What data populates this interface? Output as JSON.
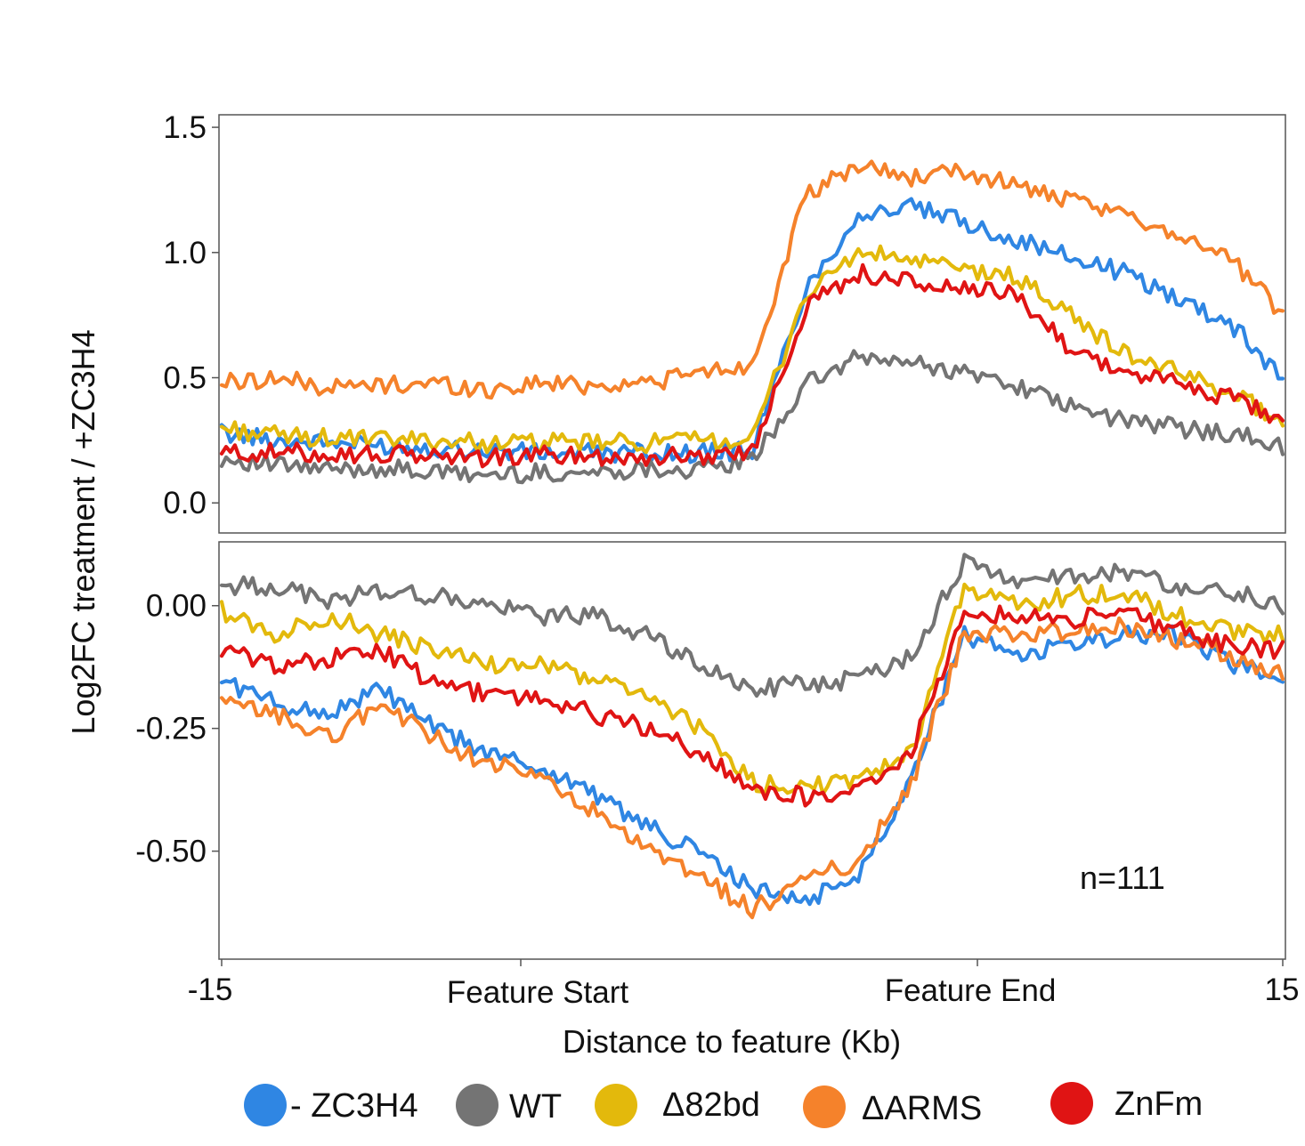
{
  "chart_data": {
    "type": "line",
    "ylabel": "Log2FC treatment / +ZC3H4",
    "xlabel": "Distance to feature (Kb)",
    "x_ticks": [
      "-15",
      "Feature Start",
      "Feature End",
      "15"
    ],
    "annotation": "n=111",
    "legend": [
      {
        "name": "- ZC3H4",
        "color": "#2f86e3"
      },
      {
        "name": "WT",
        "color": "#747474"
      },
      {
        "name": "Δ82bd",
        "color": "#e3b90c"
      },
      {
        "name": "ΔARMS",
        "color": "#f5822b"
      },
      {
        "name": "ZnFm",
        "color": "#e01414"
      }
    ],
    "x": [
      0,
      5,
      10,
      15,
      20,
      25,
      30,
      35,
      40,
      45,
      50,
      55,
      60,
      65,
      70,
      75,
      80,
      85,
      90,
      95,
      100
    ],
    "panels": [
      {
        "position": "top",
        "ylim": [
          -0.12,
          1.55
        ],
        "yticks": [
          {
            "value": 0.0,
            "label": "0.0"
          },
          {
            "value": 0.5,
            "label": "0.5"
          },
          {
            "value": 1.0,
            "label": "1.0"
          },
          {
            "value": 1.5,
            "label": "1.5"
          }
        ],
        "series": [
          {
            "name": "- ZC3H4",
            "color": "#2f86e3",
            "values": [
              0.28,
              0.25,
              0.24,
              0.23,
              0.22,
              0.21,
              0.2,
              0.2,
              0.2,
              0.2,
              0.21,
              0.85,
              1.15,
              1.18,
              1.12,
              1.05,
              0.98,
              0.92,
              0.82,
              0.72,
              0.5
            ]
          },
          {
            "name": "WT",
            "color": "#747474",
            "values": [
              0.18,
              0.15,
              0.13,
              0.14,
              0.12,
              0.11,
              0.12,
              0.12,
              0.14,
              0.13,
              0.17,
              0.47,
              0.58,
              0.56,
              0.52,
              0.47,
              0.38,
              0.33,
              0.3,
              0.28,
              0.22
            ]
          },
          {
            "name": "Δ82bd",
            "color": "#e3b90c",
            "values": [
              0.3,
              0.27,
              0.26,
              0.25,
              0.25,
              0.24,
              0.24,
              0.24,
              0.24,
              0.25,
              0.25,
              0.83,
              1.0,
              0.97,
              0.93,
              0.9,
              0.75,
              0.6,
              0.52,
              0.45,
              0.32
            ]
          },
          {
            "name": "ΔARMS",
            "color": "#f5822b",
            "values": [
              0.48,
              0.5,
              0.46,
              0.47,
              0.48,
              0.45,
              0.48,
              0.47,
              0.48,
              0.52,
              0.55,
              1.22,
              1.35,
              1.3,
              1.32,
              1.27,
              1.2,
              1.15,
              1.08,
              0.98,
              0.75
            ]
          },
          {
            "name": "ZnFm",
            "color": "#e01414",
            "values": [
              0.2,
              0.2,
              0.2,
              0.19,
              0.19,
              0.18,
              0.19,
              0.19,
              0.18,
              0.19,
              0.2,
              0.78,
              0.92,
              0.88,
              0.85,
              0.83,
              0.62,
              0.52,
              0.48,
              0.42,
              0.33
            ]
          }
        ]
      },
      {
        "position": "bottom",
        "ylim": [
          -0.72,
          0.13
        ],
        "yticks": [
          {
            "value": -0.5,
            "label": "-0.50"
          },
          {
            "value": -0.25,
            "label": "-0.25"
          },
          {
            "value": 0.0,
            "label": "0.00"
          }
        ],
        "series": [
          {
            "name": "- ZC3H4",
            "color": "#2f86e3",
            "values": [
              -0.15,
              -0.2,
              -0.22,
              -0.17,
              -0.25,
              -0.3,
              -0.33,
              -0.38,
              -0.45,
              -0.5,
              -0.58,
              -0.6,
              -0.55,
              -0.35,
              -0.06,
              -0.1,
              -0.08,
              -0.06,
              -0.06,
              -0.12,
              -0.14
            ]
          },
          {
            "name": "WT",
            "color": "#747474",
            "values": [
              0.04,
              0.04,
              0.01,
              0.03,
              0.02,
              0.0,
              -0.02,
              -0.02,
              -0.06,
              -0.12,
              -0.17,
              -0.16,
              -0.15,
              -0.1,
              0.09,
              0.05,
              0.06,
              0.07,
              0.04,
              0.03,
              0.0
            ]
          },
          {
            "name": "Δ82bd",
            "color": "#e3b90c",
            "values": [
              -0.01,
              -0.06,
              -0.02,
              -0.06,
              -0.09,
              -0.12,
              -0.12,
              -0.15,
              -0.18,
              -0.25,
              -0.36,
              -0.37,
              -0.36,
              -0.3,
              0.04,
              0.0,
              0.02,
              0.03,
              -0.02,
              -0.05,
              -0.06
            ]
          },
          {
            "name": "ΔARMS",
            "color": "#f5822b",
            "values": [
              -0.2,
              -0.22,
              -0.27,
              -0.2,
              -0.27,
              -0.32,
              -0.35,
              -0.42,
              -0.5,
              -0.55,
              -0.62,
              -0.56,
              -0.52,
              -0.36,
              -0.06,
              -0.06,
              -0.05,
              -0.04,
              -0.07,
              -0.1,
              -0.14
            ]
          },
          {
            "name": "ZnFm",
            "color": "#e01414",
            "values": [
              -0.09,
              -0.12,
              -0.11,
              -0.09,
              -0.16,
              -0.18,
              -0.19,
              -0.22,
              -0.25,
              -0.3,
              -0.37,
              -0.39,
              -0.37,
              -0.3,
              -0.01,
              -0.02,
              -0.03,
              -0.01,
              -0.05,
              -0.08,
              -0.09
            ]
          }
        ]
      }
    ]
  }
}
